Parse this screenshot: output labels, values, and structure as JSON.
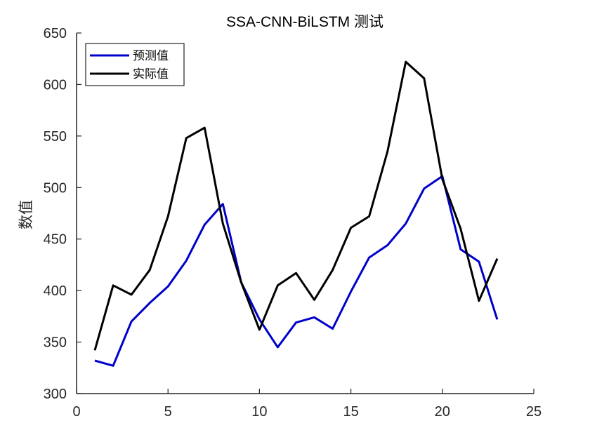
{
  "chart_data": {
    "type": "line",
    "title": "SSA-CNN-BiLSTM 测试",
    "xlabel": "",
    "ylabel": "数值",
    "xlim": [
      0,
      25
    ],
    "ylim": [
      300,
      650
    ],
    "xticks": [
      0,
      5,
      10,
      15,
      20,
      25
    ],
    "yticks": [
      300,
      350,
      400,
      450,
      500,
      550,
      600,
      650
    ],
    "grid": false,
    "legend_position": "top-left",
    "x": [
      1,
      2,
      3,
      4,
      5,
      6,
      7,
      8,
      9,
      10,
      11,
      12,
      13,
      14,
      15,
      16,
      17,
      18,
      19,
      20,
      21,
      22,
      23
    ],
    "series": [
      {
        "name": "预测值",
        "color": "#0000cc",
        "values": [
          332,
          327,
          370,
          388,
          404,
          429,
          464,
          484,
          408,
          372,
          345,
          369,
          374,
          363,
          399,
          432,
          444,
          465,
          499,
          511,
          440,
          428,
          372
        ]
      },
      {
        "name": "实际值",
        "color": "#000000",
        "values": [
          342,
          405,
          396,
          420,
          472,
          548,
          558,
          465,
          408,
          362,
          405,
          417,
          391,
          420,
          461,
          472,
          535,
          622,
          606,
          508,
          460,
          390,
          431
        ]
      }
    ]
  }
}
